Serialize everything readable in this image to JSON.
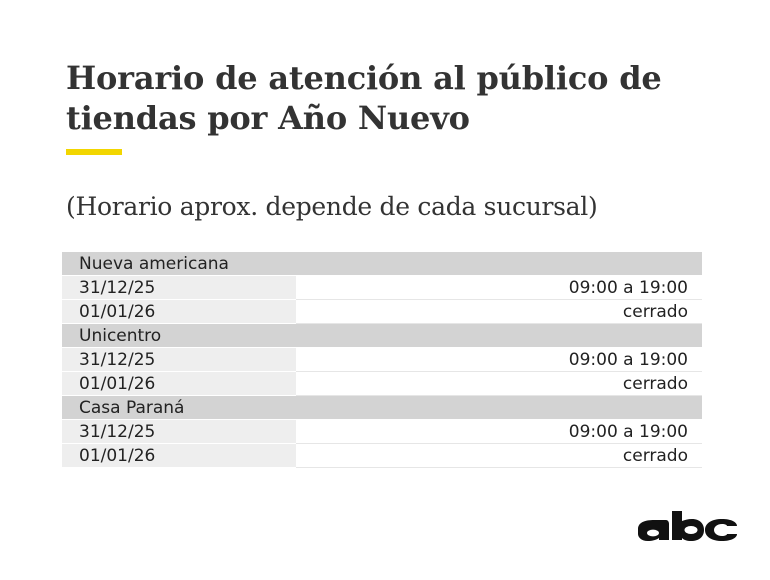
{
  "title": "Horario de atención al público de tiendas por Año Nuevo",
  "subtitle": "(Horario aprox. depende de cada sucursal)",
  "colors": {
    "accent": "#f2d600",
    "group_row": "#d3d3d3",
    "date_cell": "#eeeeee"
  },
  "stores": [
    {
      "name": "Nueva americana",
      "rows": [
        {
          "date": "31/12/25",
          "hours": "09:00 a 19:00"
        },
        {
          "date": "01/01/26",
          "hours": "cerrado"
        }
      ]
    },
    {
      "name": "Unicentro",
      "rows": [
        {
          "date": "31/12/25",
          "hours": "09:00 a 19:00"
        },
        {
          "date": "01/01/26",
          "hours": "cerrado"
        }
      ]
    },
    {
      "name": "Casa Paraná",
      "rows": [
        {
          "date": "31/12/25",
          "hours": "09:00 a 19:00"
        },
        {
          "date": "01/01/26",
          "hours": "cerrado"
        }
      ]
    }
  ],
  "logo": {
    "text": "abc",
    "icon": "abc-logo-icon"
  }
}
